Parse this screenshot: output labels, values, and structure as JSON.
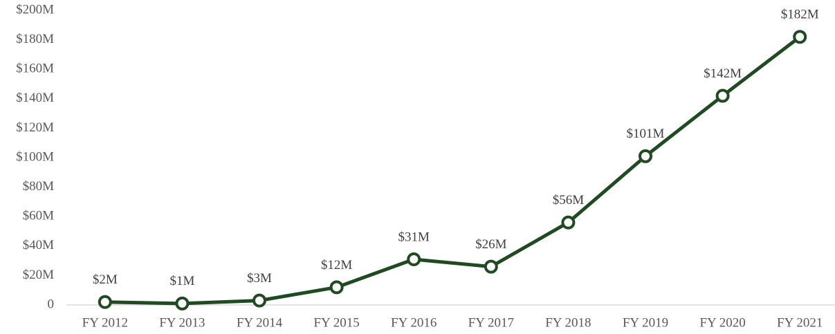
{
  "chart_data": {
    "type": "line",
    "categories": [
      "FY 2012",
      "FY 2013",
      "FY 2014",
      "FY 2015",
      "FY 2016",
      "FY 2017",
      "FY 2018",
      "FY 2019",
      "FY 2020",
      "FY 2021"
    ],
    "values": [
      2,
      1,
      3,
      12,
      31,
      26,
      56,
      101,
      142,
      182
    ],
    "value_labels": [
      "$2M",
      "$1M",
      "$3M",
      "$12M",
      "$31M",
      "$26M",
      "$56M",
      "$101M",
      "$142M",
      "$182M"
    ],
    "color": "#1f4a22",
    "ylim": [
      0,
      200
    ],
    "yticks": [
      0,
      {
        "value": 20,
        "label": "$20M"
      },
      {
        "value": 40,
        "label": "$40M"
      },
      {
        "value": 60,
        "label": "$60M"
      },
      {
        "value": 80,
        "label": "$80M"
      },
      {
        "value": 100,
        "label": "$100M"
      },
      {
        "value": 120,
        "label": "$120M"
      },
      {
        "value": 140,
        "label": "$140M"
      },
      {
        "value": 160,
        "label": "$160M"
      },
      {
        "value": 180,
        "label": "$180M"
      },
      {
        "value": 200,
        "label": "$200M"
      }
    ],
    "grid": false
  }
}
